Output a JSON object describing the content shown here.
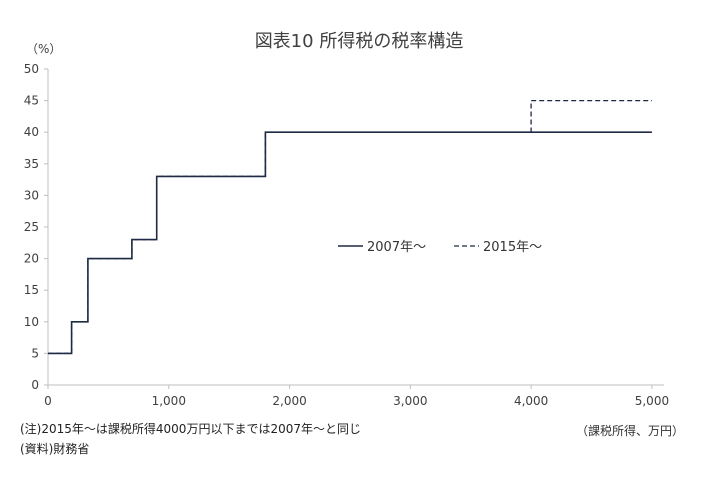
{
  "chart_data": {
    "type": "line",
    "title": "図表10 所得税の税率構造",
    "y_unit_label": "（%）",
    "x_unit_label": "（課税所得、万円）",
    "xlim": [
      0,
      5100
    ],
    "ylim": [
      0,
      50
    ],
    "x_ticks": [
      0,
      1000,
      2000,
      3000,
      4000,
      5000
    ],
    "x_tick_labels": [
      "0",
      "1,000",
      "2,000",
      "3,000",
      "4,000",
      "5,000"
    ],
    "y_ticks": [
      0,
      5,
      10,
      15,
      20,
      25,
      30,
      35,
      40,
      45,
      50
    ],
    "y_tick_labels": [
      "0",
      "5",
      "10",
      "15",
      "20",
      "25",
      "30",
      "35",
      "40",
      "45",
      "50"
    ],
    "grid": false,
    "legend_position": "center-right",
    "series": [
      {
        "name": "2007年～",
        "line_style": "solid",
        "color": "#1f2a44",
        "points": [
          [
            0,
            5
          ],
          [
            195,
            5
          ],
          [
            195,
            10
          ],
          [
            330,
            10
          ],
          [
            330,
            20
          ],
          [
            695,
            20
          ],
          [
            695,
            23
          ],
          [
            900,
            23
          ],
          [
            900,
            33
          ],
          [
            1800,
            33
          ],
          [
            1800,
            40
          ],
          [
            5000,
            40
          ]
        ]
      },
      {
        "name": "2015年～",
        "line_style": "dashed",
        "color": "#1f2a44",
        "points": [
          [
            0,
            5
          ],
          [
            195,
            5
          ],
          [
            195,
            10
          ],
          [
            330,
            10
          ],
          [
            330,
            20
          ],
          [
            695,
            20
          ],
          [
            695,
            23
          ],
          [
            900,
            23
          ],
          [
            900,
            33
          ],
          [
            1800,
            33
          ],
          [
            1800,
            40
          ],
          [
            4000,
            40
          ],
          [
            4000,
            45
          ],
          [
            5000,
            45
          ]
        ]
      }
    ]
  },
  "notes": {
    "line1": "(注)2015年～は課税所得4000万円以下までは2007年～と同じ",
    "line2": "(資料)財務省"
  },
  "colors": {
    "axis": "#bfbfbf",
    "tick_text": "#404040"
  }
}
